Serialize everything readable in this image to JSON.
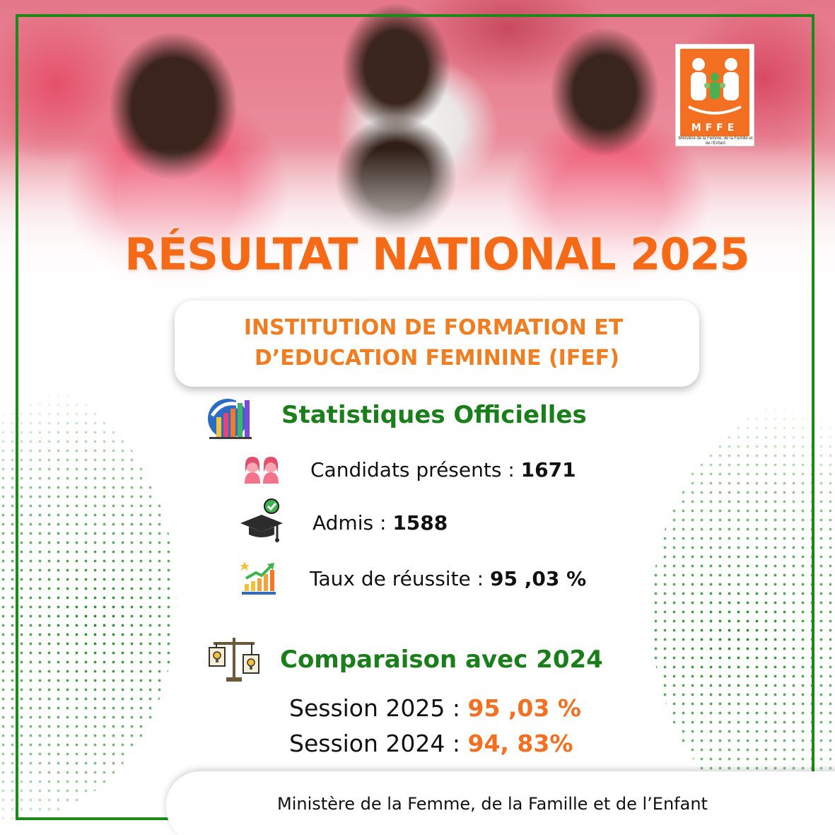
{
  "logo": {
    "letters": "MFFE",
    "subtitle": "Ministère de la Femme, de la Famille et de l'Enfant",
    "colors": {
      "background": "#f36f21",
      "figures": "#4caf50"
    }
  },
  "title": "RÉSULTAT NATIONAL 2025",
  "institution": {
    "line1": "INSTITUTION DE FORMATION ET",
    "line2": "D’EDUCATION FEMININE (IFEF)"
  },
  "stats": {
    "heading": "Statistiques Officielles",
    "icon": "bar-chart-icon",
    "items": [
      {
        "icon": "students-icon",
        "label": "Candidats présents : ",
        "value": "1671"
      },
      {
        "icon": "graduation-cap-icon",
        "label": "Admis : ",
        "value": "1588"
      },
      {
        "icon": "growth-chart-icon",
        "label": "Taux de réussite : ",
        "value": "95 ,03 %"
      }
    ]
  },
  "comparison": {
    "heading": "Comparaison avec 2024",
    "icon": "balance-scale-icon",
    "sessions": [
      {
        "label": "Session 2025 : ",
        "value": "95 ,03 %"
      },
      {
        "label": "Session 2024 : ",
        "value": "94, 83%"
      }
    ]
  },
  "footer": {
    "text": "Ministère de la Femme, de la Famille et de l’Enfant"
  },
  "colors": {
    "frame_green": "#1b8a1b",
    "heading_green": "#1a7f1a",
    "accent_orange": "#f36f21",
    "title_orange": "#f46a17"
  }
}
